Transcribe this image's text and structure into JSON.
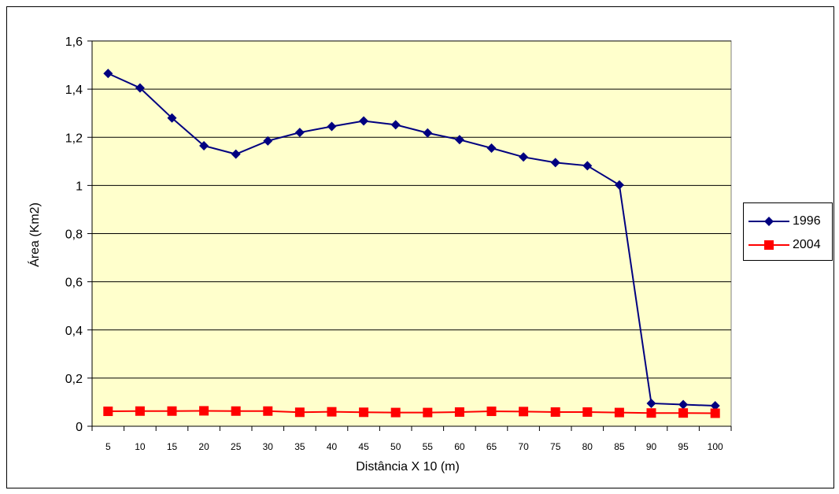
{
  "chart_data": {
    "type": "line",
    "xlabel": "Distância X 10 (m)",
    "ylabel": "Área (Km2)",
    "x": [
      "5",
      "10",
      "15",
      "20",
      "25",
      "30",
      "35",
      "40",
      "45",
      "50",
      "55",
      "60",
      "65",
      "70",
      "75",
      "80",
      "85",
      "90",
      "95",
      "100"
    ],
    "ylim": [
      0,
      1.6
    ],
    "yticks": [
      "0",
      "0,2",
      "0,4",
      "0,6",
      "0,8",
      "1",
      "1,2",
      "1,4",
      "1,6"
    ],
    "grid": true,
    "legend_position": "right",
    "plot_background": "#FFFFCC",
    "series": [
      {
        "name": "1996",
        "color": "#000080",
        "marker": "diamond",
        "values": [
          1.465,
          1.405,
          1.28,
          1.165,
          1.13,
          1.185,
          1.22,
          1.245,
          1.268,
          1.252,
          1.218,
          1.19,
          1.155,
          1.118,
          1.095,
          1.082,
          1.002,
          0.095,
          0.09,
          0.085
        ]
      },
      {
        "name": "2004",
        "color": "#FF0000",
        "marker": "square",
        "values": [
          0.062,
          0.063,
          0.063,
          0.064,
          0.063,
          0.063,
          0.058,
          0.06,
          0.058,
          0.057,
          0.057,
          0.059,
          0.062,
          0.061,
          0.059,
          0.059,
          0.057,
          0.055,
          0.055,
          0.054
        ]
      }
    ]
  }
}
